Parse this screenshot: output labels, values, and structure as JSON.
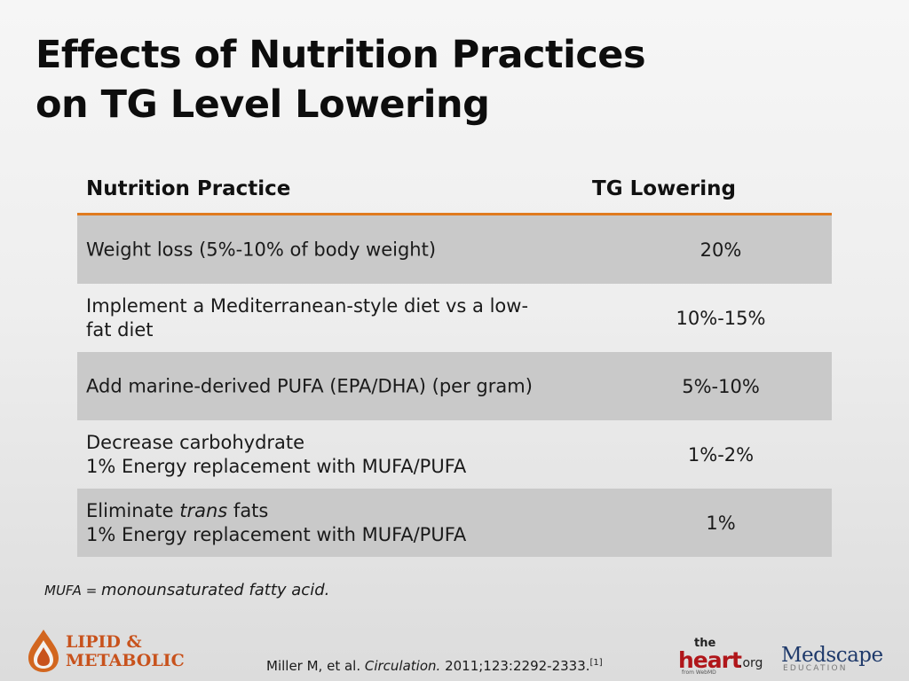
{
  "title": {
    "line1": "Effects of Nutrition Practices",
    "line2": "on TG Level Lowering"
  },
  "table": {
    "headers": [
      "Nutrition Practice",
      "TG Lowering"
    ],
    "rows": [
      {
        "practice_line1": "Weight loss (5%-10% of body weight)",
        "practice_line2": "",
        "value": "20%"
      },
      {
        "practice_line1": "Implement a Mediterranean-style diet vs a low-",
        "practice_line2": "fat diet",
        "value": "10%-15%"
      },
      {
        "practice_line1": "Add marine-derived PUFA (EPA/DHA) (per gram)",
        "practice_line2": "",
        "value": "5%-10%"
      },
      {
        "practice_line1": "Decrease carbohydrate",
        "practice_line2": "1% Energy replacement with MUFA/PUFA",
        "value": "1%-2%"
      },
      {
        "practice_line1_pre": "Eliminate ",
        "practice_line1_italic": "trans",
        "practice_line1_post": " fats",
        "practice_line2": "1% Energy replacement with MUFA/PUFA",
        "value": "1%"
      }
    ]
  },
  "footnote": {
    "abbr": "MUFA = ",
    "definition": "monounsaturated fatty acid."
  },
  "citation": {
    "authors": "Miller M, et al. ",
    "journal": "Circulation.",
    "details": " 2011;123:2292-2333.",
    "ref": "[1]"
  },
  "logos": {
    "left": {
      "line1": "LIPID &",
      "line2": "METABOLIC",
      "icon": "flame-drop-icon"
    },
    "heart": {
      "the": "the",
      "heart": "heart",
      "org": ".org",
      "sub": "from WebMD"
    },
    "medscape": {
      "name": "Medscape",
      "sub": "EDUCATION"
    }
  },
  "colors": {
    "accent_rule": "#e07a1e",
    "row_shade": "#c9c9c9",
    "brand_lipid": "#c8521c",
    "brand_heart": "#b0161a",
    "brand_medscape": "#1f3a6b"
  }
}
